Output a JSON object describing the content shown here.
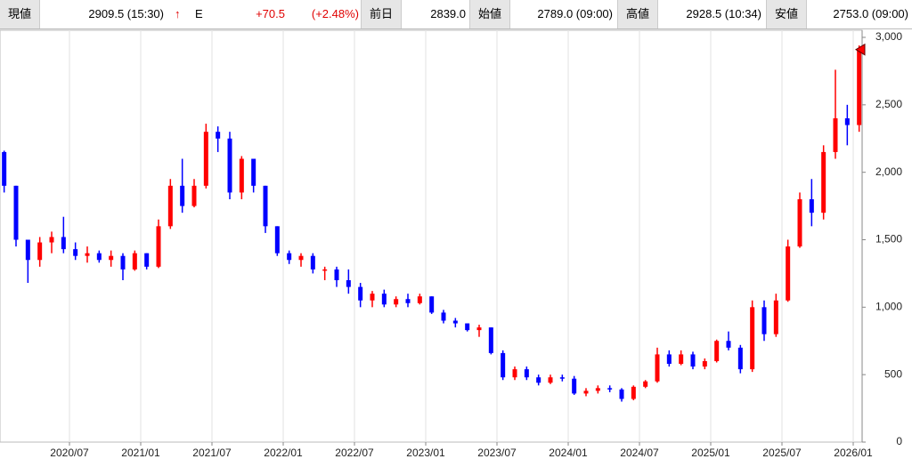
{
  "header": {
    "items": [
      {
        "label": "現値",
        "value": "2909.5 (15:30)"
      },
      {
        "label": "前日",
        "value": "2839.0"
      },
      {
        "label": "始値",
        "value": "2789.0 (09:00)"
      },
      {
        "label": "高値",
        "value": "2928.5 (10:34)"
      },
      {
        "label": "安値",
        "value": "2753.0 (09:00)"
      }
    ],
    "arrow": "↑",
    "flag": "E",
    "change": "+70.5",
    "change_pct": "(+2.48%)"
  },
  "chart_data": {
    "type": "candlestick",
    "up_color": "#ff0000",
    "down_color": "#0000ff",
    "grid": true,
    "x": [
      "2020/01",
      "2020/02",
      "2020/03",
      "2020/04",
      "2020/05",
      "2020/06",
      "2020/07",
      "2020/08",
      "2020/09",
      "2020/10",
      "2020/11",
      "2020/12",
      "2021/01",
      "2021/02",
      "2021/03",
      "2021/04",
      "2021/05",
      "2021/06",
      "2021/07",
      "2021/08",
      "2021/09",
      "2021/10",
      "2021/11",
      "2021/12",
      "2022/01",
      "2022/02",
      "2022/03",
      "2022/04",
      "2022/05",
      "2022/06",
      "2022/07",
      "2022/08",
      "2022/09",
      "2022/10",
      "2022/11",
      "2022/12",
      "2023/01",
      "2023/02",
      "2023/03",
      "2023/04",
      "2023/05",
      "2023/06",
      "2023/07",
      "2023/08",
      "2023/09",
      "2023/10",
      "2023/11",
      "2023/12",
      "2024/01",
      "2024/02",
      "2024/03",
      "2024/04",
      "2024/05",
      "2024/06",
      "2024/07",
      "2024/08",
      "2024/09",
      "2024/10",
      "2024/11",
      "2024/12",
      "2025/01",
      "2025/02",
      "2025/03",
      "2025/04",
      "2025/05",
      "2025/06",
      "2025/07",
      "2025/08",
      "2025/09",
      "2025/10",
      "2025/11",
      "2025/12",
      "2026/01"
    ],
    "open": [
      2150,
      1900,
      1500,
      1350,
      1480,
      1520,
      1430,
      1380,
      1400,
      1350,
      1380,
      1280,
      1400,
      1300,
      1600,
      1900,
      1750,
      1900,
      2300,
      2250,
      1850,
      2100,
      1900,
      1600,
      1400,
      1350,
      1380,
      1280,
      1280,
      1200,
      1150,
      1050,
      1100,
      1020,
      1060,
      1030,
      1080,
      960,
      900,
      880,
      830,
      850,
      660,
      480,
      540,
      480,
      440,
      480,
      470,
      360,
      380,
      400,
      390,
      320,
      410,
      450,
      650,
      580,
      650,
      560,
      600,
      750,
      700,
      540,
      1000,
      800,
      1050,
      1450,
      1800,
      1700,
      2150,
      2400,
      2350
    ],
    "high": [
      2160,
      1900,
      1500,
      1520,
      1560,
      1670,
      1480,
      1450,
      1420,
      1420,
      1400,
      1420,
      1400,
      1650,
      1950,
      2100,
      1950,
      2360,
      2340,
      2300,
      2120,
      2100,
      1900,
      1600,
      1420,
      1400,
      1400,
      1300,
      1300,
      1280,
      1180,
      1120,
      1130,
      1080,
      1100,
      1100,
      1080,
      980,
      920,
      880,
      870,
      850,
      680,
      560,
      560,
      500,
      500,
      500,
      490,
      400,
      420,
      420,
      400,
      420,
      460,
      700,
      680,
      680,
      670,
      620,
      760,
      820,
      720,
      1050,
      1050,
      1100,
      1500,
      1850,
      1950,
      2200,
      2760,
      2500,
      2940
    ],
    "low": [
      1850,
      1450,
      1180,
      1300,
      1400,
      1400,
      1350,
      1330,
      1330,
      1300,
      1200,
      1270,
      1280,
      1290,
      1580,
      1700,
      1740,
      1880,
      2150,
      1800,
      1800,
      1850,
      1550,
      1380,
      1320,
      1300,
      1250,
      1200,
      1150,
      1100,
      1000,
      1000,
      1000,
      1000,
      1000,
      1020,
      950,
      880,
      850,
      820,
      780,
      650,
      460,
      460,
      460,
      420,
      430,
      450,
      350,
      340,
      360,
      370,
      300,
      310,
      400,
      440,
      560,
      570,
      540,
      540,
      590,
      680,
      510,
      520,
      750,
      780,
      1040,
      1440,
      1600,
      1650,
      2100,
      2200,
      2300
    ],
    "close": [
      1900,
      1500,
      1350,
      1480,
      1520,
      1430,
      1380,
      1400,
      1350,
      1380,
      1280,
      1400,
      1300,
      1600,
      1900,
      1750,
      1900,
      2300,
      2250,
      1850,
      2100,
      1900,
      1600,
      1400,
      1350,
      1380,
      1280,
      1280,
      1200,
      1150,
      1050,
      1100,
      1020,
      1060,
      1030,
      1080,
      960,
      900,
      880,
      830,
      850,
      660,
      480,
      540,
      480,
      440,
      480,
      470,
      360,
      380,
      400,
      390,
      320,
      410,
      450,
      650,
      580,
      650,
      560,
      600,
      750,
      700,
      540,
      1000,
      800,
      1050,
      1450,
      1800,
      1700,
      2150,
      2400,
      2350,
      2909.5
    ],
    "xticks": [
      "2020/07",
      "2021/01",
      "2021/07",
      "2022/01",
      "2022/07",
      "2023/01",
      "2023/07",
      "2024/01",
      "2024/07",
      "2025/01",
      "2025/07",
      "2026/01"
    ],
    "ylim": [
      0,
      3000
    ],
    "yticks": [
      0,
      500,
      {
        "value": 1000,
        "label": "1,000"
      },
      {
        "value": 1500,
        "label": "1,500"
      },
      {
        "value": 2000,
        "label": "2,000"
      },
      {
        "value": 2500,
        "label": "2,500"
      },
      {
        "value": 3000,
        "label": "3,000"
      }
    ]
  }
}
